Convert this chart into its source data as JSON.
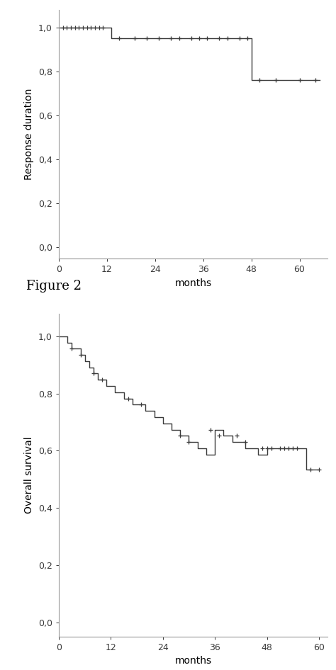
{
  "plot1": {
    "ylabel": "Response duration",
    "xlabel": "months",
    "yticks": [
      0.0,
      0.2,
      0.4,
      0.6,
      0.8,
      1.0
    ],
    "ytick_labels": [
      "0,0",
      "0,2",
      "0,4",
      "0,6",
      "0,8",
      "1,0"
    ],
    "xticks": [
      0,
      12,
      24,
      36,
      48,
      60
    ],
    "xlim": [
      0,
      67
    ],
    "ylim": [
      -0.05,
      1.08
    ],
    "km_x": [
      0,
      13,
      13,
      48,
      48,
      65
    ],
    "km_y": [
      1.0,
      1.0,
      0.952,
      0.952,
      0.762,
      0.762
    ],
    "censor_marks": [
      [
        1,
        1.0
      ],
      [
        2,
        1.0
      ],
      [
        3,
        1.0
      ],
      [
        4,
        1.0
      ],
      [
        5,
        1.0
      ],
      [
        6,
        1.0
      ],
      [
        7,
        1.0
      ],
      [
        8,
        1.0
      ],
      [
        9,
        1.0
      ],
      [
        10,
        1.0
      ],
      [
        11,
        1.0
      ],
      [
        15,
        0.952
      ],
      [
        19,
        0.952
      ],
      [
        22,
        0.952
      ],
      [
        25,
        0.952
      ],
      [
        28,
        0.952
      ],
      [
        30,
        0.952
      ],
      [
        33,
        0.952
      ],
      [
        35,
        0.952
      ],
      [
        37,
        0.952
      ],
      [
        40,
        0.952
      ],
      [
        42,
        0.952
      ],
      [
        45,
        0.952
      ],
      [
        47,
        0.952
      ],
      [
        50,
        0.762
      ],
      [
        54,
        0.762
      ],
      [
        60,
        0.762
      ],
      [
        64,
        0.762
      ]
    ]
  },
  "plot2": {
    "ylabel": "Overall survival",
    "xlabel": "months",
    "yticks": [
      0.0,
      0.2,
      0.4,
      0.6,
      0.8,
      1.0
    ],
    "ytick_labels": [
      "0,0",
      "0,2",
      "0,4",
      "0,6",
      "0,8",
      "1,0"
    ],
    "xticks": [
      0,
      12,
      24,
      36,
      48,
      60
    ],
    "xlim": [
      0,
      62
    ],
    "ylim": [
      -0.05,
      1.08
    ],
    "km_x": [
      0,
      2,
      2,
      3,
      3,
      5,
      5,
      6,
      6,
      7,
      7,
      8,
      8,
      9,
      9,
      11,
      11,
      13,
      13,
      15,
      15,
      17,
      17,
      20,
      20,
      22,
      22,
      24,
      24,
      26,
      26,
      28,
      28,
      30,
      30,
      32,
      32,
      34,
      34,
      36,
      36,
      38,
      38,
      40,
      40,
      43,
      43,
      46,
      46,
      48,
      48,
      57,
      57,
      60
    ],
    "km_y": [
      1.0,
      1.0,
      0.978,
      0.978,
      0.957,
      0.957,
      0.935,
      0.935,
      0.913,
      0.913,
      0.891,
      0.891,
      0.87,
      0.87,
      0.848,
      0.848,
      0.826,
      0.826,
      0.804,
      0.804,
      0.783,
      0.783,
      0.761,
      0.761,
      0.739,
      0.739,
      0.717,
      0.717,
      0.696,
      0.696,
      0.674,
      0.674,
      0.652,
      0.652,
      0.63,
      0.63,
      0.609,
      0.609,
      0.587,
      0.587,
      0.674,
      0.674,
      0.652,
      0.652,
      0.63,
      0.63,
      0.609,
      0.609,
      0.587,
      0.587,
      0.609,
      0.609,
      0.533,
      0.533
    ],
    "censor_marks": [
      [
        3,
        0.957
      ],
      [
        5,
        0.935
      ],
      [
        8,
        0.87
      ],
      [
        10,
        0.848
      ],
      [
        16,
        0.783
      ],
      [
        19,
        0.761
      ],
      [
        28,
        0.652
      ],
      [
        30,
        0.63
      ],
      [
        35,
        0.674
      ],
      [
        37,
        0.652
      ],
      [
        41,
        0.652
      ],
      [
        43,
        0.63
      ],
      [
        47,
        0.609
      ],
      [
        48,
        0.609
      ],
      [
        49,
        0.609
      ],
      [
        51,
        0.609
      ],
      [
        52,
        0.609
      ],
      [
        53,
        0.609
      ],
      [
        54,
        0.609
      ],
      [
        55,
        0.609
      ],
      [
        58,
        0.533
      ],
      [
        60,
        0.533
      ]
    ]
  },
  "figure2_label": "Figure 2",
  "line_color": "#3a3a3a",
  "censor_color": "#3a3a3a",
  "axis_color": "#999999",
  "tick_font_size": 9,
  "label_font_size": 10
}
